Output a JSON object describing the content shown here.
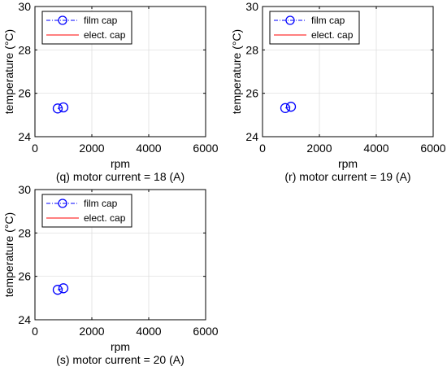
{
  "chart_data": [
    {
      "type": "line",
      "caption": "(q) motor current = 18 (A)",
      "xlabel": "rpm",
      "ylabel": "temperature (°C)",
      "xlim": [
        0,
        6000
      ],
      "ylim": [
        24,
        30
      ],
      "xticks": [
        "0",
        "2000",
        "4000",
        "6000"
      ],
      "yticks": [
        "24",
        "26",
        "28",
        "30"
      ],
      "grid": true,
      "legend_position": "top-left",
      "series": [
        {
          "name": "film cap",
          "color": "#0000ff",
          "marker": "circle",
          "line": "dash-dot",
          "x": [
            800,
            1000
          ],
          "y": [
            25.3,
            25.35
          ]
        },
        {
          "name": "elect. cap",
          "color": "#ff0000",
          "marker": "none",
          "line": "solid",
          "x": [],
          "y": []
        }
      ]
    },
    {
      "type": "line",
      "caption": "(r) motor current = 19 (A)",
      "xlabel": "rpm",
      "ylabel": "temperature (°C)",
      "xlim": [
        0,
        6000
      ],
      "ylim": [
        24,
        30
      ],
      "xticks": [
        "0",
        "2000",
        "4000",
        "6000"
      ],
      "yticks": [
        "24",
        "26",
        "28",
        "30"
      ],
      "grid": true,
      "legend_position": "top-left",
      "series": [
        {
          "name": "film cap",
          "color": "#0000ff",
          "marker": "circle",
          "line": "dash-dot",
          "x": [
            800,
            1000
          ],
          "y": [
            25.32,
            25.38
          ]
        },
        {
          "name": "elect. cap",
          "color": "#ff0000",
          "marker": "none",
          "line": "solid",
          "x": [],
          "y": []
        }
      ]
    },
    {
      "type": "line",
      "caption": "(s) motor current = 20 (A)",
      "xlabel": "rpm",
      "ylabel": "temperature (°C)",
      "xlim": [
        0,
        6000
      ],
      "ylim": [
        24,
        30
      ],
      "xticks": [
        "0",
        "2000",
        "4000",
        "6000"
      ],
      "yticks": [
        "24",
        "26",
        "28",
        "30"
      ],
      "grid": true,
      "legend_position": "top-left",
      "series": [
        {
          "name": "film cap",
          "color": "#0000ff",
          "marker": "circle",
          "line": "dash-dot",
          "x": [
            800,
            1000
          ],
          "y": [
            25.38,
            25.45
          ]
        },
        {
          "name": "elect. cap",
          "color": "#ff0000",
          "marker": "none",
          "line": "solid",
          "x": [],
          "y": []
        }
      ]
    }
  ]
}
